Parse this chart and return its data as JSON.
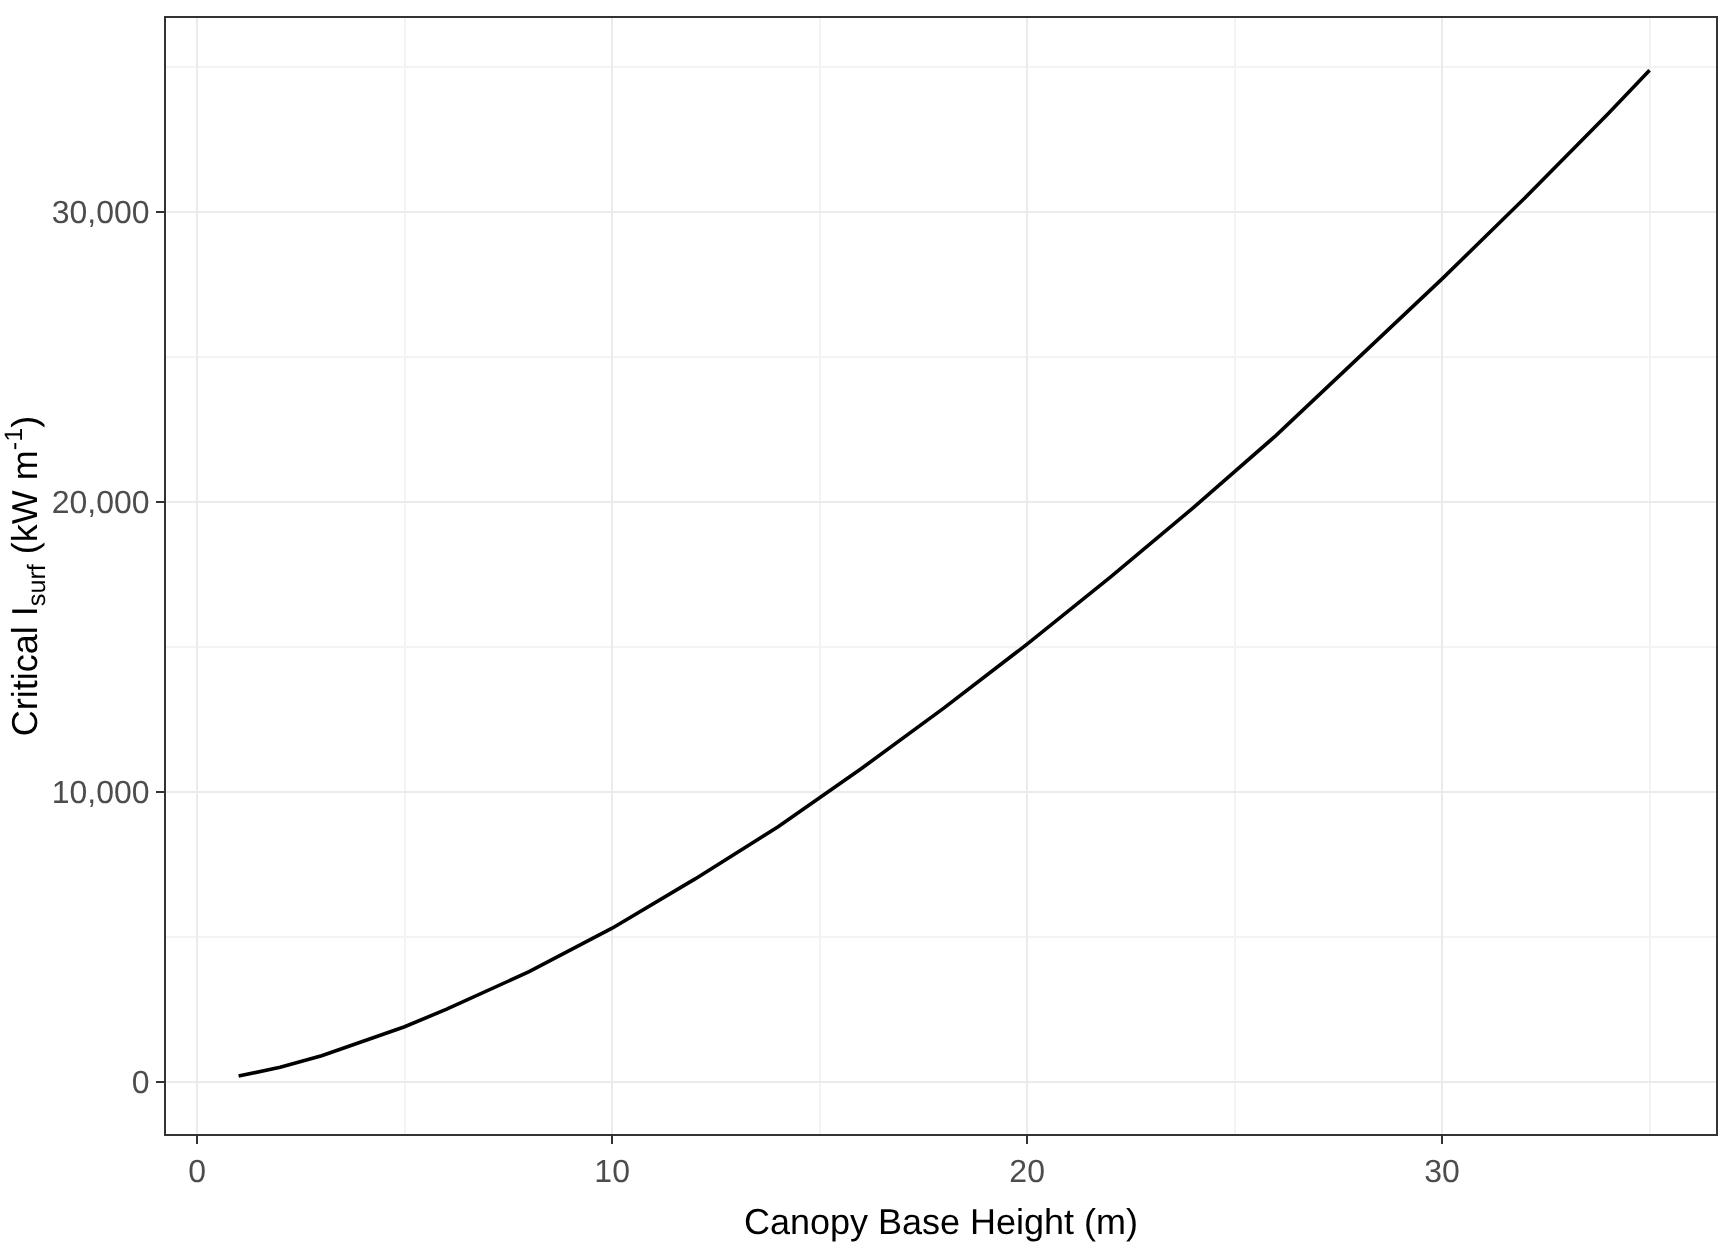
{
  "chart_data": {
    "type": "line",
    "xlabel": "Canopy Base Height (m)",
    "ylabel": "Critical I$_{surf}$ (kW m$^{-1}$)",
    "x": [
      1,
      2,
      3,
      4,
      5,
      6,
      8,
      10,
      12,
      14,
      16,
      18,
      20,
      22,
      24,
      26,
      28,
      30,
      32,
      34,
      35
    ],
    "series": [
      {
        "color": "#000000",
        "values": [
          200,
          500,
          900,
          1400,
          1900,
          2500,
          3800,
          5300,
          7000,
          8800,
          10800,
          12900,
          15100,
          17400,
          19800,
          22300,
          25000,
          27700,
          30500,
          33400,
          34900
        ]
      }
    ],
    "xlim": [
      -0.75,
      36.6
    ],
    "xticks": [
      0,
      10,
      20,
      30
    ],
    "ylim": [
      -1800,
      36700
    ],
    "yticks": [
      {
        "value": 0,
        "label": "0"
      },
      {
        "value": 10000,
        "label": "10,000"
      },
      {
        "value": 20000,
        "label": "20,000"
      },
      {
        "value": 30000,
        "label": "30,000"
      }
    ],
    "grid": true,
    "line_style": "solid",
    "marker": "none"
  }
}
